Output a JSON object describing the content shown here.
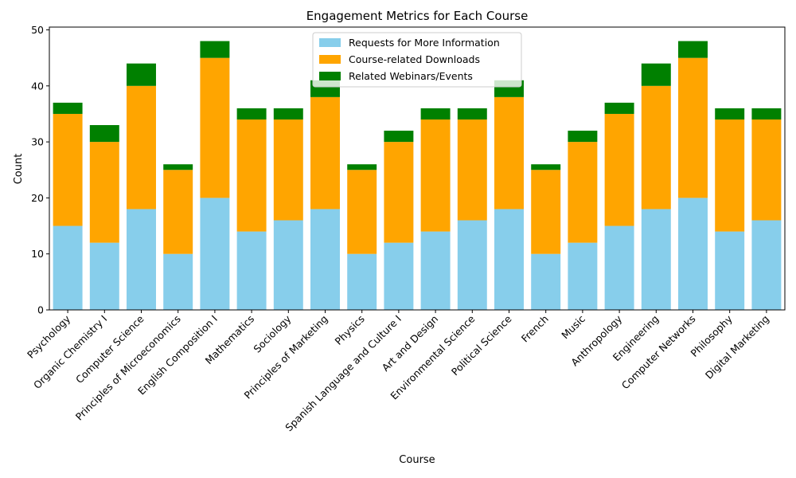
{
  "chart_data": {
    "type": "bar",
    "stacked": true,
    "title": "Engagement Metrics for Each Course",
    "xlabel": "Course",
    "ylabel": "Count",
    "ylim": [
      0,
      50.5
    ],
    "yticks": [
      0,
      10,
      20,
      30,
      40,
      50
    ],
    "legend_position": "top-center",
    "grid": false,
    "categories": [
      "Psychology",
      "Organic Chemistry I",
      "Computer Science",
      "Principles of Microeconomics",
      "English Composition I",
      "Mathematics",
      "Sociology",
      "Principles of Marketing",
      "Physics",
      "Spanish Language and Culture I",
      "Art and Design",
      "Environmental Science",
      "Political Science",
      "French",
      "Music",
      "Anthropology",
      "Engineering",
      "Computer Networks",
      "Philosophy",
      "Digital Marketing"
    ],
    "series": [
      {
        "name": "Requests for More Information",
        "color": "#87ceeb",
        "values": [
          15,
          12,
          18,
          10,
          20,
          14,
          16,
          18,
          10,
          12,
          14,
          16,
          18,
          10,
          12,
          15,
          18,
          20,
          14,
          16
        ]
      },
      {
        "name": "Course-related Downloads",
        "color": "#ffa500",
        "values": [
          20,
          18,
          22,
          15,
          25,
          20,
          18,
          20,
          15,
          18,
          20,
          18,
          20,
          15,
          18,
          20,
          22,
          25,
          20,
          18
        ]
      },
      {
        "name": "Related Webinars/Events",
        "color": "#008000",
        "values": [
          2,
          3,
          4,
          1,
          3,
          2,
          2,
          3,
          1,
          2,
          2,
          2,
          3,
          1,
          2,
          2,
          4,
          3,
          2,
          2
        ]
      }
    ]
  }
}
